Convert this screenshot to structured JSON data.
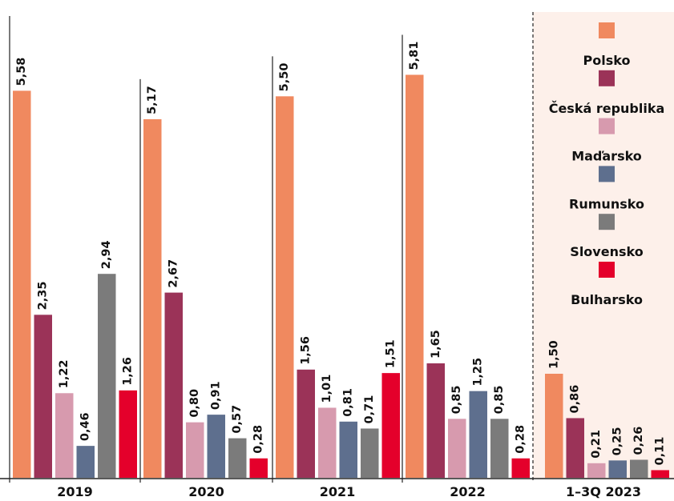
{
  "chart_data": {
    "type": "bar",
    "categories": [
      "2019",
      "2020",
      "2021",
      "2022",
      "1–3Q 2023"
    ],
    "series": [
      {
        "name": "Polsko",
        "color": "#f0895f",
        "values": [
          5.58,
          5.17,
          5.5,
          5.81,
          1.5
        ],
        "value_labels": [
          "5,58",
          "5,17",
          "5,50",
          "5,81",
          "1,50"
        ]
      },
      {
        "name": "Česká republika",
        "color": "#9b3358",
        "values": [
          2.35,
          2.67,
          1.56,
          1.65,
          0.86
        ],
        "value_labels": [
          "2,35",
          "2,67",
          "1,56",
          "1,65",
          "0,86"
        ]
      },
      {
        "name": "Maďarsko",
        "color": "#d79aae",
        "values": [
          1.22,
          0.8,
          1.01,
          0.85,
          0.21
        ],
        "value_labels": [
          "1,22",
          "0,80",
          "1,01",
          "0,85",
          "0,21"
        ]
      },
      {
        "name": "Rumunsko",
        "color": "#5e6f8e",
        "values": [
          0.46,
          0.91,
          0.81,
          1.25,
          0.25
        ],
        "value_labels": [
          "0,46",
          "0,91",
          "0,81",
          "1,25",
          "0,25"
        ]
      },
      {
        "name": "Slovensko",
        "color": "#7b7b7b",
        "values": [
          2.94,
          0.57,
          0.71,
          0.85,
          0.26
        ],
        "value_labels": [
          "2,94",
          "0,57",
          "0,71",
          "0,85",
          "0,26"
        ]
      },
      {
        "name": "Bulharsko",
        "color": "#e4002b",
        "values": [
          1.26,
          0.28,
          1.51,
          0.28,
          0.11
        ],
        "value_labels": [
          "1,26",
          "0,28",
          "1,51",
          "0,28",
          "0,11"
        ]
      }
    ],
    "ylim": [
      0,
      6
    ]
  }
}
